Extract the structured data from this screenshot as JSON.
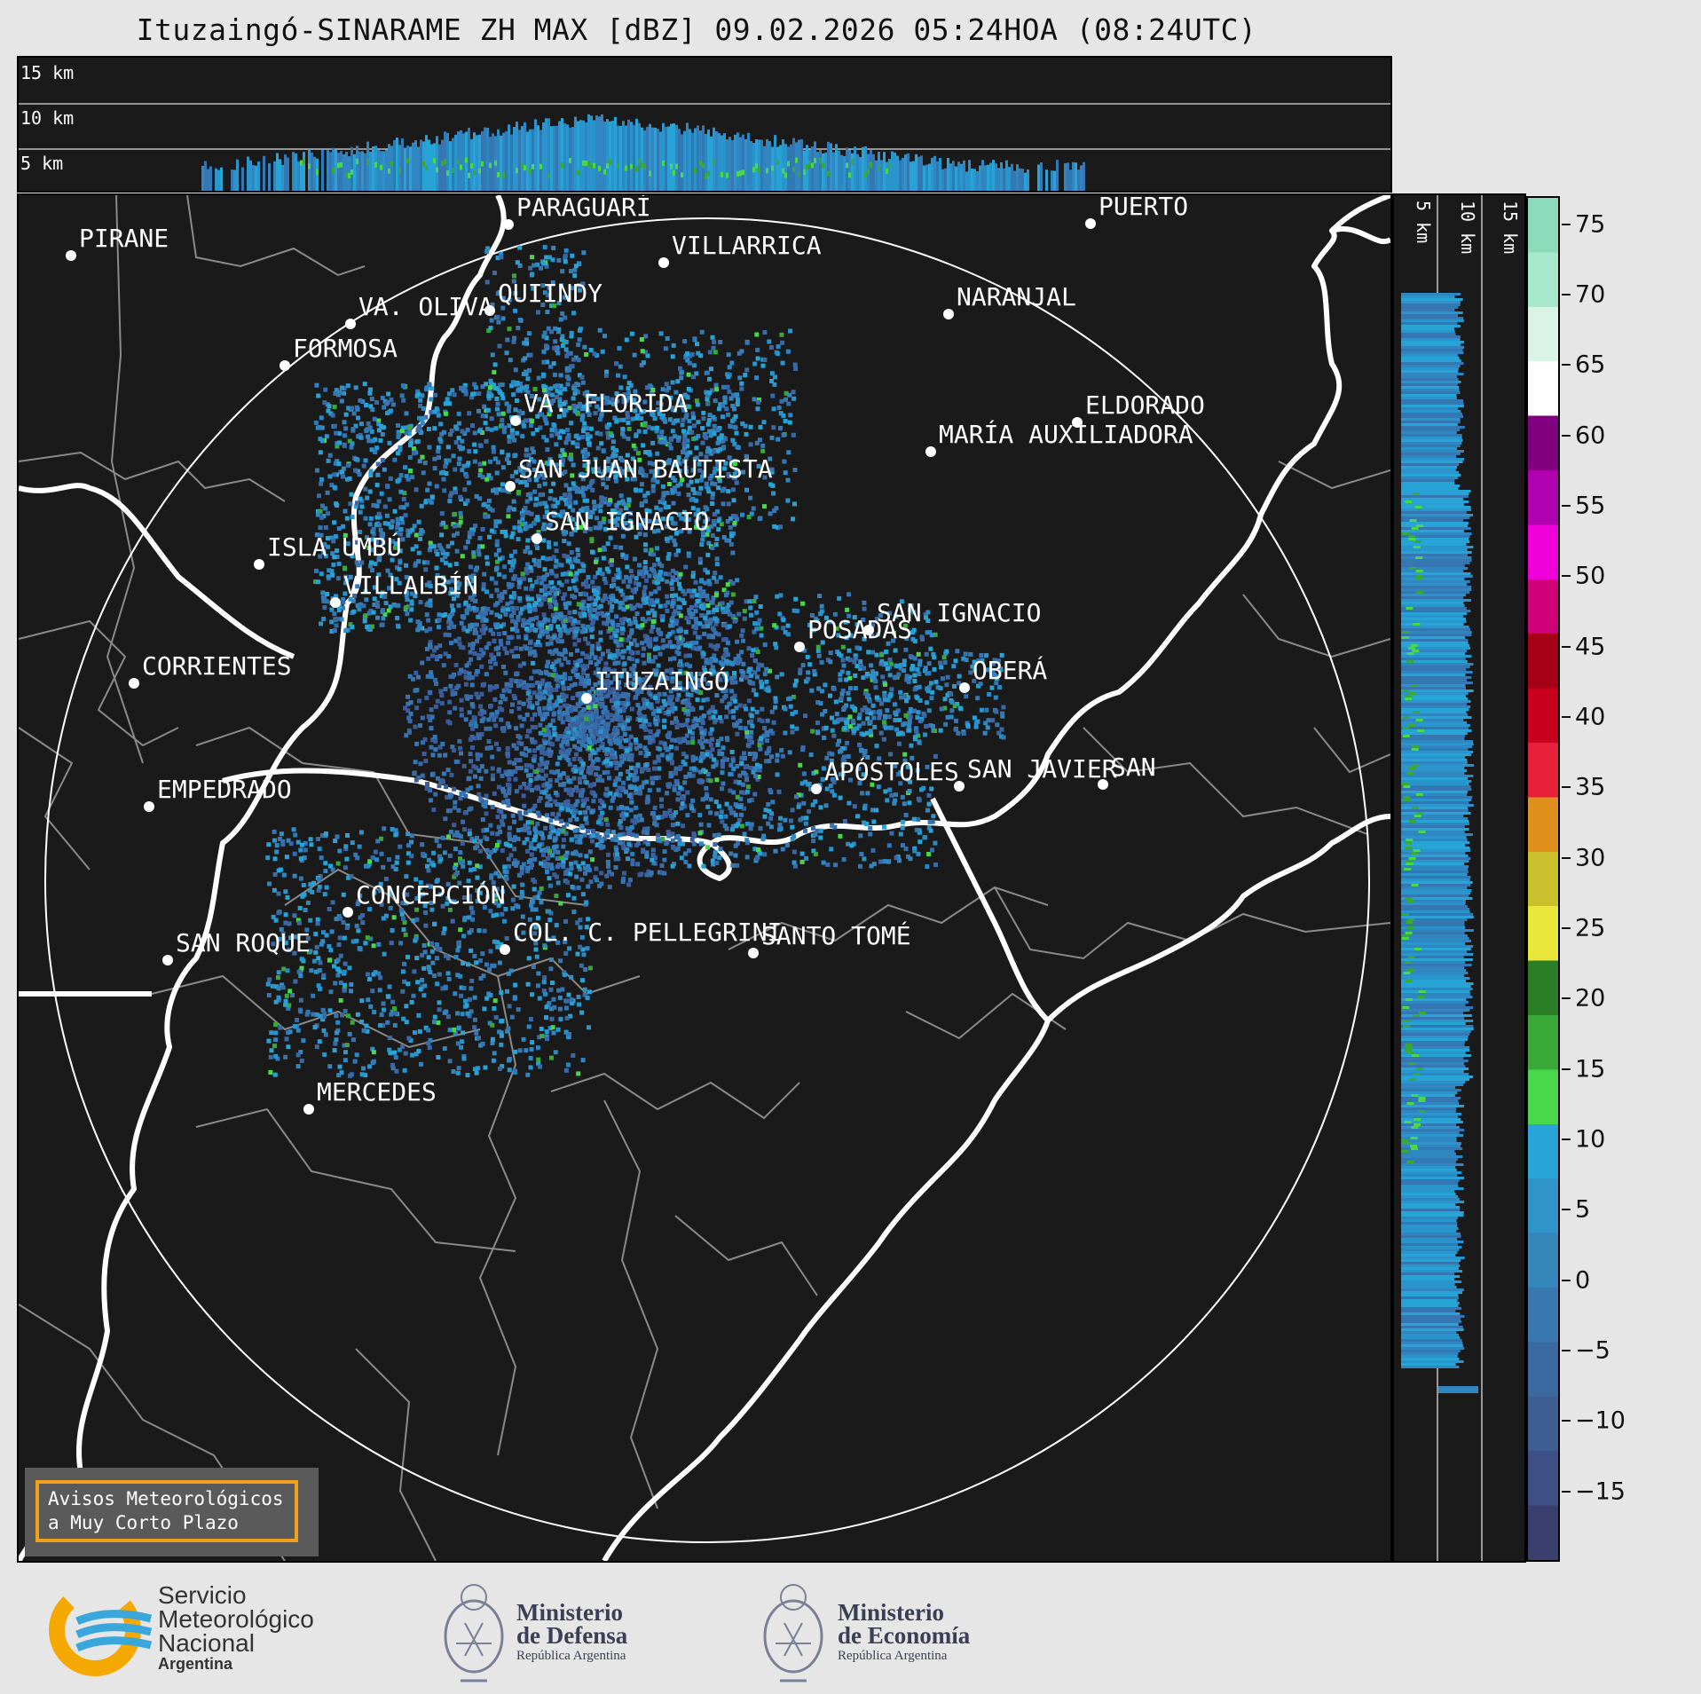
{
  "title": "Ituzaingó-SINARAME ZH MAX [dBZ] 09.02.2026 05:24HOA (08:24UTC)",
  "height_labels": [
    "15 km",
    "10 km",
    "5 km"
  ],
  "cities": [
    {
      "name": "PARAGUARÍ"
    },
    {
      "name": "VILLARRICA"
    },
    {
      "name": "PIRANE"
    },
    {
      "name": "QUIINDY"
    },
    {
      "name": "VA. OLIVA"
    },
    {
      "name": "NARANJAL"
    },
    {
      "name": "FORMOSA"
    },
    {
      "name": "VA. FLORIDA"
    },
    {
      "name": "ELDORADO"
    },
    {
      "name": "MARÍA AUXILIADORA"
    },
    {
      "name": "SAN JUAN BAUTISTA"
    },
    {
      "name": "SAN IGNACIO"
    },
    {
      "name": "ISLA UMBÚ"
    },
    {
      "name": "VILLALBÍN"
    },
    {
      "name": "SAN IGNACIO"
    },
    {
      "name": "POSADAS"
    },
    {
      "name": "CORRIENTES"
    },
    {
      "name": "ITUZAINGÓ"
    },
    {
      "name": "OBERÁ"
    },
    {
      "name": "EMPEDRADO"
    },
    {
      "name": "APÓSTOLES"
    },
    {
      "name": "SAN JAVIER"
    },
    {
      "name": "SAN"
    },
    {
      "name": "CONCEPCIÓN"
    },
    {
      "name": "COL. C. PELLEGRINI"
    },
    {
      "name": "SANTO TOMÉ"
    },
    {
      "name": "SAN ROQUE"
    },
    {
      "name": "MERCEDES"
    },
    {
      "name": "PUERTO"
    }
  ],
  "colorbar": {
    "unit": "dBZ",
    "min": -20,
    "max": 77,
    "ticks": [
      "75",
      "70",
      "65",
      "60",
      "55",
      "50",
      "45",
      "40",
      "35",
      "30",
      "25",
      "20",
      "15",
      "10",
      "5",
      "0",
      "−5",
      "−10",
      "−15"
    ],
    "tick_values": [
      75,
      70,
      65,
      60,
      55,
      50,
      45,
      40,
      35,
      30,
      25,
      20,
      15,
      10,
      5,
      0,
      -5,
      -10,
      -15
    ],
    "colors": [
      "#3b3f6e",
      "#3e4f86",
      "#3d5d93",
      "#3b6aa0",
      "#3878ad",
      "#3586ba",
      "#2f94c7",
      "#28a5d6",
      "#48d84a",
      "#3aa836",
      "#2b7d26",
      "#e9e83a",
      "#c9c02c",
      "#e0901c",
      "#e8213a",
      "#c9001d",
      "#a50016",
      "#d0007a",
      "#ef00d8",
      "#b100b0",
      "#800080",
      "#ffffff",
      "#d9f3e6",
      "#a8e8cc",
      "#8ddbbd"
    ]
  },
  "alert": {
    "line1": "Avisos Meteorológicos",
    "line2": "a Muy Corto Plazo"
  },
  "logos": {
    "smn": {
      "line1": "Servicio",
      "line2": "Meteorológico",
      "line3": "Nacional",
      "line4": "Argentina"
    },
    "defensa": {
      "line1": "Ministerio",
      "line2": "de Defensa",
      "line3": "República Argentina"
    },
    "economia": {
      "line1": "Ministerio",
      "line2": "de Economía",
      "line3": "República Argentina"
    }
  },
  "colors": {
    "background": "#e6e6e6",
    "panel": "#1a1a1a",
    "alert_border": "#f2a11d",
    "smn_orange": "#f5a800",
    "smn_blue": "#3aa7dc"
  }
}
